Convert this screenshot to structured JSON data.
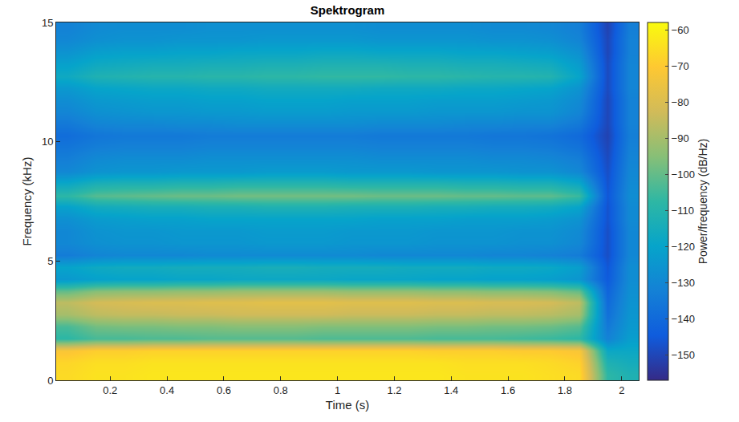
{
  "chart_data": {
    "type": "heatmap",
    "title": "Spektrogram",
    "x_label": "Time (s)",
    "y_label": "Frequency (kHz)",
    "xlim": [
      0.01,
      2.06
    ],
    "xticks": [
      0.2,
      0.4,
      0.6,
      0.8,
      1,
      1.2,
      1.4,
      1.6,
      1.8,
      2
    ],
    "ylim": [
      0,
      15
    ],
    "yticks": [
      0,
      5,
      10,
      15
    ],
    "x": [
      0.05,
      0.15,
      0.25,
      0.35,
      0.45,
      0.55,
      0.65,
      0.75,
      0.85,
      0.95,
      1.05,
      1.15,
      1.25,
      1.35,
      1.45,
      1.55,
      1.65,
      1.75,
      1.85,
      1.95,
      2.03
    ],
    "y": [
      0.25,
      0.75,
      1.25,
      1.75,
      2.25,
      2.75,
      3.25,
      3.75,
      4.25,
      4.75,
      5.25,
      5.75,
      6.25,
      6.75,
      7.25,
      7.75,
      8.25,
      8.75,
      9.25,
      9.75,
      10.25,
      10.75,
      11.25,
      11.75,
      12.25,
      12.75,
      13.25,
      13.75,
      14.25,
      14.75
    ],
    "z": [
      [
        -66,
        -64,
        -64,
        -63,
        -63,
        -63,
        -63,
        -63,
        -63,
        -63,
        -63,
        -63,
        -63,
        -63,
        -64,
        -64,
        -64,
        -65,
        -66,
        -108,
        -112
      ],
      [
        -67,
        -65,
        -65,
        -64,
        -64,
        -64,
        -64,
        -64,
        -64,
        -64,
        -64,
        -64,
        -64,
        -64,
        -65,
        -65,
        -65,
        -66,
        -68,
        -112,
        -115
      ],
      [
        -72,
        -69,
        -69,
        -68,
        -68,
        -68,
        -68,
        -68,
        -68,
        -68,
        -68,
        -68,
        -68,
        -69,
        -69,
        -69,
        -70,
        -70,
        -72,
        -118,
        -118
      ],
      [
        -108,
        -104,
        -104,
        -103,
        -103,
        -102,
        -102,
        -102,
        -102,
        -103,
        -103,
        -103,
        -103,
        -104,
        -104,
        -104,
        -105,
        -106,
        -108,
        -132,
        -122
      ],
      [
        -104,
        -98,
        -97,
        -97,
        -96,
        -96,
        -95,
        -95,
        -95,
        -96,
        -96,
        -96,
        -96,
        -97,
        -97,
        -98,
        -98,
        -99,
        -102,
        -135,
        -124
      ],
      [
        -90,
        -86,
        -85,
        -85,
        -84,
        -84,
        -83,
        -83,
        -83,
        -83,
        -84,
        -84,
        -84,
        -85,
        -85,
        -86,
        -86,
        -87,
        -90,
        -138,
        -125
      ],
      [
        -86,
        -82,
        -81,
        -80,
        -80,
        -79,
        -79,
        -78,
        -78,
        -78,
        -79,
        -79,
        -79,
        -80,
        -80,
        -81,
        -81,
        -82,
        -86,
        -140,
        -126
      ],
      [
        -100,
        -95,
        -94,
        -94,
        -93,
        -93,
        -92,
        -92,
        -92,
        -92,
        -93,
        -93,
        -93,
        -94,
        -94,
        -95,
        -95,
        -96,
        -100,
        -142,
        -127
      ],
      [
        -124,
        -121,
        -120,
        -120,
        -119,
        -119,
        -118,
        -118,
        -118,
        -118,
        -119,
        -119,
        -119,
        -120,
        -120,
        -121,
        -121,
        -122,
        -125,
        -145,
        -128
      ],
      [
        -120,
        -117,
        -116,
        -116,
        -115,
        -115,
        -115,
        -114,
        -114,
        -115,
        -115,
        -115,
        -116,
        -116,
        -116,
        -117,
        -117,
        -118,
        -122,
        -146,
        -128
      ],
      [
        -134,
        -131,
        -130,
        -130,
        -130,
        -129,
        -129,
        -129,
        -129,
        -129,
        -129,
        -130,
        -130,
        -130,
        -130,
        -131,
        -131,
        -132,
        -134,
        -148,
        -130
      ],
      [
        -130,
        -127,
        -126,
        -126,
        -125,
        -125,
        -125,
        -124,
        -124,
        -124,
        -125,
        -125,
        -125,
        -126,
        -126,
        -126,
        -127,
        -127,
        -130,
        -148,
        -130
      ],
      [
        -130,
        -126,
        -125,
        -125,
        -124,
        -124,
        -124,
        -123,
        -123,
        -123,
        -124,
        -124,
        -124,
        -125,
        -125,
        -125,
        -126,
        -126,
        -129,
        -148,
        -130
      ],
      [
        -127,
        -123,
        -122,
        -121,
        -121,
        -120,
        -120,
        -120,
        -120,
        -120,
        -120,
        -121,
        -121,
        -121,
        -122,
        -122,
        -122,
        -123,
        -126,
        -147,
        -129
      ],
      [
        -121,
        -116,
        -115,
        -114,
        -114,
        -113,
        -113,
        -112,
        -112,
        -112,
        -113,
        -113,
        -113,
        -114,
        -114,
        -115,
        -115,
        -116,
        -120,
        -147,
        -129
      ],
      [
        -108,
        -102,
        -101,
        -100,
        -99,
        -99,
        -98,
        -98,
        -98,
        -98,
        -98,
        -99,
        -99,
        -99,
        -100,
        -100,
        -101,
        -101,
        -106,
        -146,
        -128
      ],
      [
        -118,
        -113,
        -112,
        -112,
        -111,
        -111,
        -110,
        -110,
        -110,
        -110,
        -111,
        -111,
        -111,
        -111,
        -112,
        -112,
        -113,
        -113,
        -118,
        -147,
        -129
      ],
      [
        -130,
        -126,
        -125,
        -125,
        -124,
        -124,
        -124,
        -123,
        -123,
        -123,
        -124,
        -124,
        -124,
        -125,
        -125,
        -125,
        -126,
        -126,
        -130,
        -148,
        -130
      ],
      [
        -133,
        -129,
        -128,
        -128,
        -128,
        -127,
        -127,
        -127,
        -127,
        -127,
        -127,
        -128,
        -128,
        -128,
        -128,
        -129,
        -129,
        -130,
        -133,
        -149,
        -131
      ],
      [
        -136,
        -133,
        -132,
        -132,
        -132,
        -131,
        -131,
        -131,
        -131,
        -131,
        -131,
        -132,
        -132,
        -132,
        -132,
        -133,
        -133,
        -134,
        -137,
        -150,
        -132
      ],
      [
        -139,
        -136,
        -135,
        -135,
        -135,
        -134,
        -134,
        -134,
        -134,
        -134,
        -134,
        -135,
        -135,
        -135,
        -135,
        -136,
        -136,
        -137,
        -140,
        -151,
        -133
      ],
      [
        -135,
        -131,
        -130,
        -130,
        -129,
        -129,
        -128,
        -128,
        -128,
        -128,
        -128,
        -129,
        -129,
        -129,
        -130,
        -130,
        -131,
        -131,
        -135,
        -150,
        -132
      ],
      [
        -131,
        -127,
        -126,
        -125,
        -125,
        -124,
        -124,
        -123,
        -123,
        -123,
        -124,
        -124,
        -124,
        -125,
        -125,
        -125,
        -126,
        -126,
        -131,
        -150,
        -132
      ],
      [
        -128,
        -124,
        -123,
        -122,
        -122,
        -121,
        -121,
        -120,
        -120,
        -120,
        -121,
        -121,
        -121,
        -122,
        -122,
        -122,
        -123,
        -124,
        -129,
        -150,
        -132
      ],
      [
        -124,
        -120,
        -119,
        -118,
        -118,
        -117,
        -117,
        -116,
        -116,
        -116,
        -116,
        -117,
        -117,
        -117,
        -118,
        -118,
        -119,
        -120,
        -126,
        -149,
        -131
      ],
      [
        -117,
        -112,
        -111,
        -110,
        -110,
        -109,
        -109,
        -108,
        -108,
        -107,
        -107,
        -107,
        -108,
        -108,
        -109,
        -110,
        -110,
        -111,
        -120,
        -149,
        -131
      ],
      [
        -121,
        -117,
        -116,
        -115,
        -115,
        -114,
        -114,
        -113,
        -113,
        -112,
        -112,
        -112,
        -113,
        -113,
        -114,
        -114,
        -115,
        -116,
        -123,
        -149,
        -131
      ],
      [
        -126,
        -122,
        -121,
        -121,
        -120,
        -120,
        -119,
        -119,
        -119,
        -118,
        -118,
        -119,
        -119,
        -119,
        -120,
        -120,
        -121,
        -122,
        -127,
        -150,
        -132
      ],
      [
        -130,
        -127,
        -126,
        -126,
        -125,
        -125,
        -125,
        -124,
        -124,
        -124,
        -124,
        -125,
        -125,
        -125,
        -125,
        -126,
        -126,
        -127,
        -131,
        -150,
        -132
      ],
      [
        -132,
        -129,
        -128,
        -128,
        -128,
        -127,
        -127,
        -127,
        -127,
        -127,
        -127,
        -128,
        -128,
        -128,
        -128,
        -129,
        -129,
        -130,
        -133,
        -151,
        -133
      ]
    ],
    "colorbar": {
      "title": "Power/frequency (dB/Hz)",
      "range": [
        -157,
        -58
      ],
      "ticks": [
        -60,
        -70,
        -80,
        -90,
        -100,
        -110,
        -120,
        -130,
        -140,
        -150
      ]
    },
    "grid": false
  }
}
